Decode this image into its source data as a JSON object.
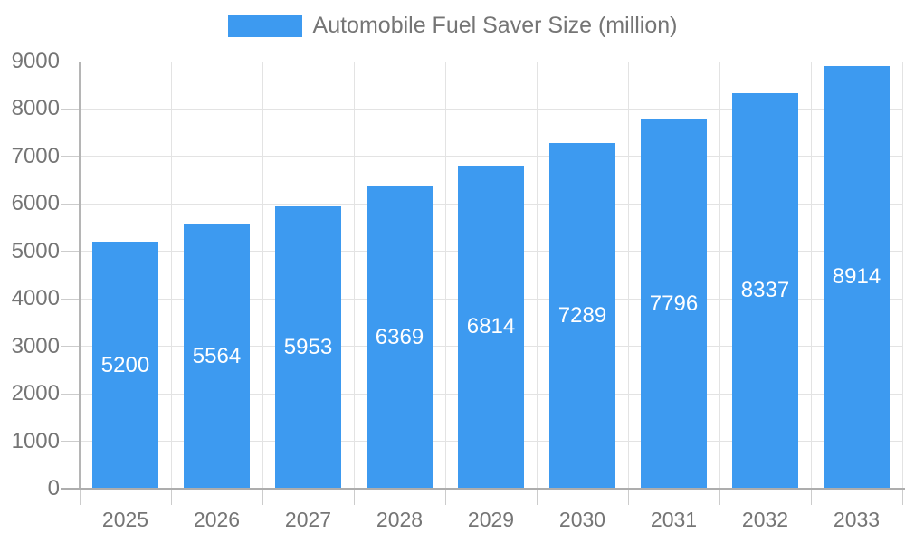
{
  "chart_data": {
    "type": "bar",
    "title": "Automobile Fuel Saver Size (million)",
    "categories": [
      "2025",
      "2026",
      "2027",
      "2028",
      "2029",
      "2030",
      "2031",
      "2032",
      "2033"
    ],
    "values": [
      5200,
      5564,
      5953,
      6369,
      6814,
      7289,
      7796,
      8337,
      8914
    ],
    "xlabel": "",
    "ylabel": "",
    "ylim": [
      0,
      9000
    ],
    "y_ticks": [
      0,
      1000,
      2000,
      3000,
      4000,
      5000,
      6000,
      7000,
      8000,
      9000
    ],
    "grid": true,
    "legend_position": "top-center",
    "colors": {
      "bar": "#3d9af0",
      "value_label": "#ffffff",
      "axis_text": "#757575",
      "gridline": "#e3e3e3",
      "axis_line": "#b0b0b0",
      "background": "#ffffff"
    }
  },
  "legend": {
    "label": "Automobile Fuel Saver Size (million)"
  }
}
